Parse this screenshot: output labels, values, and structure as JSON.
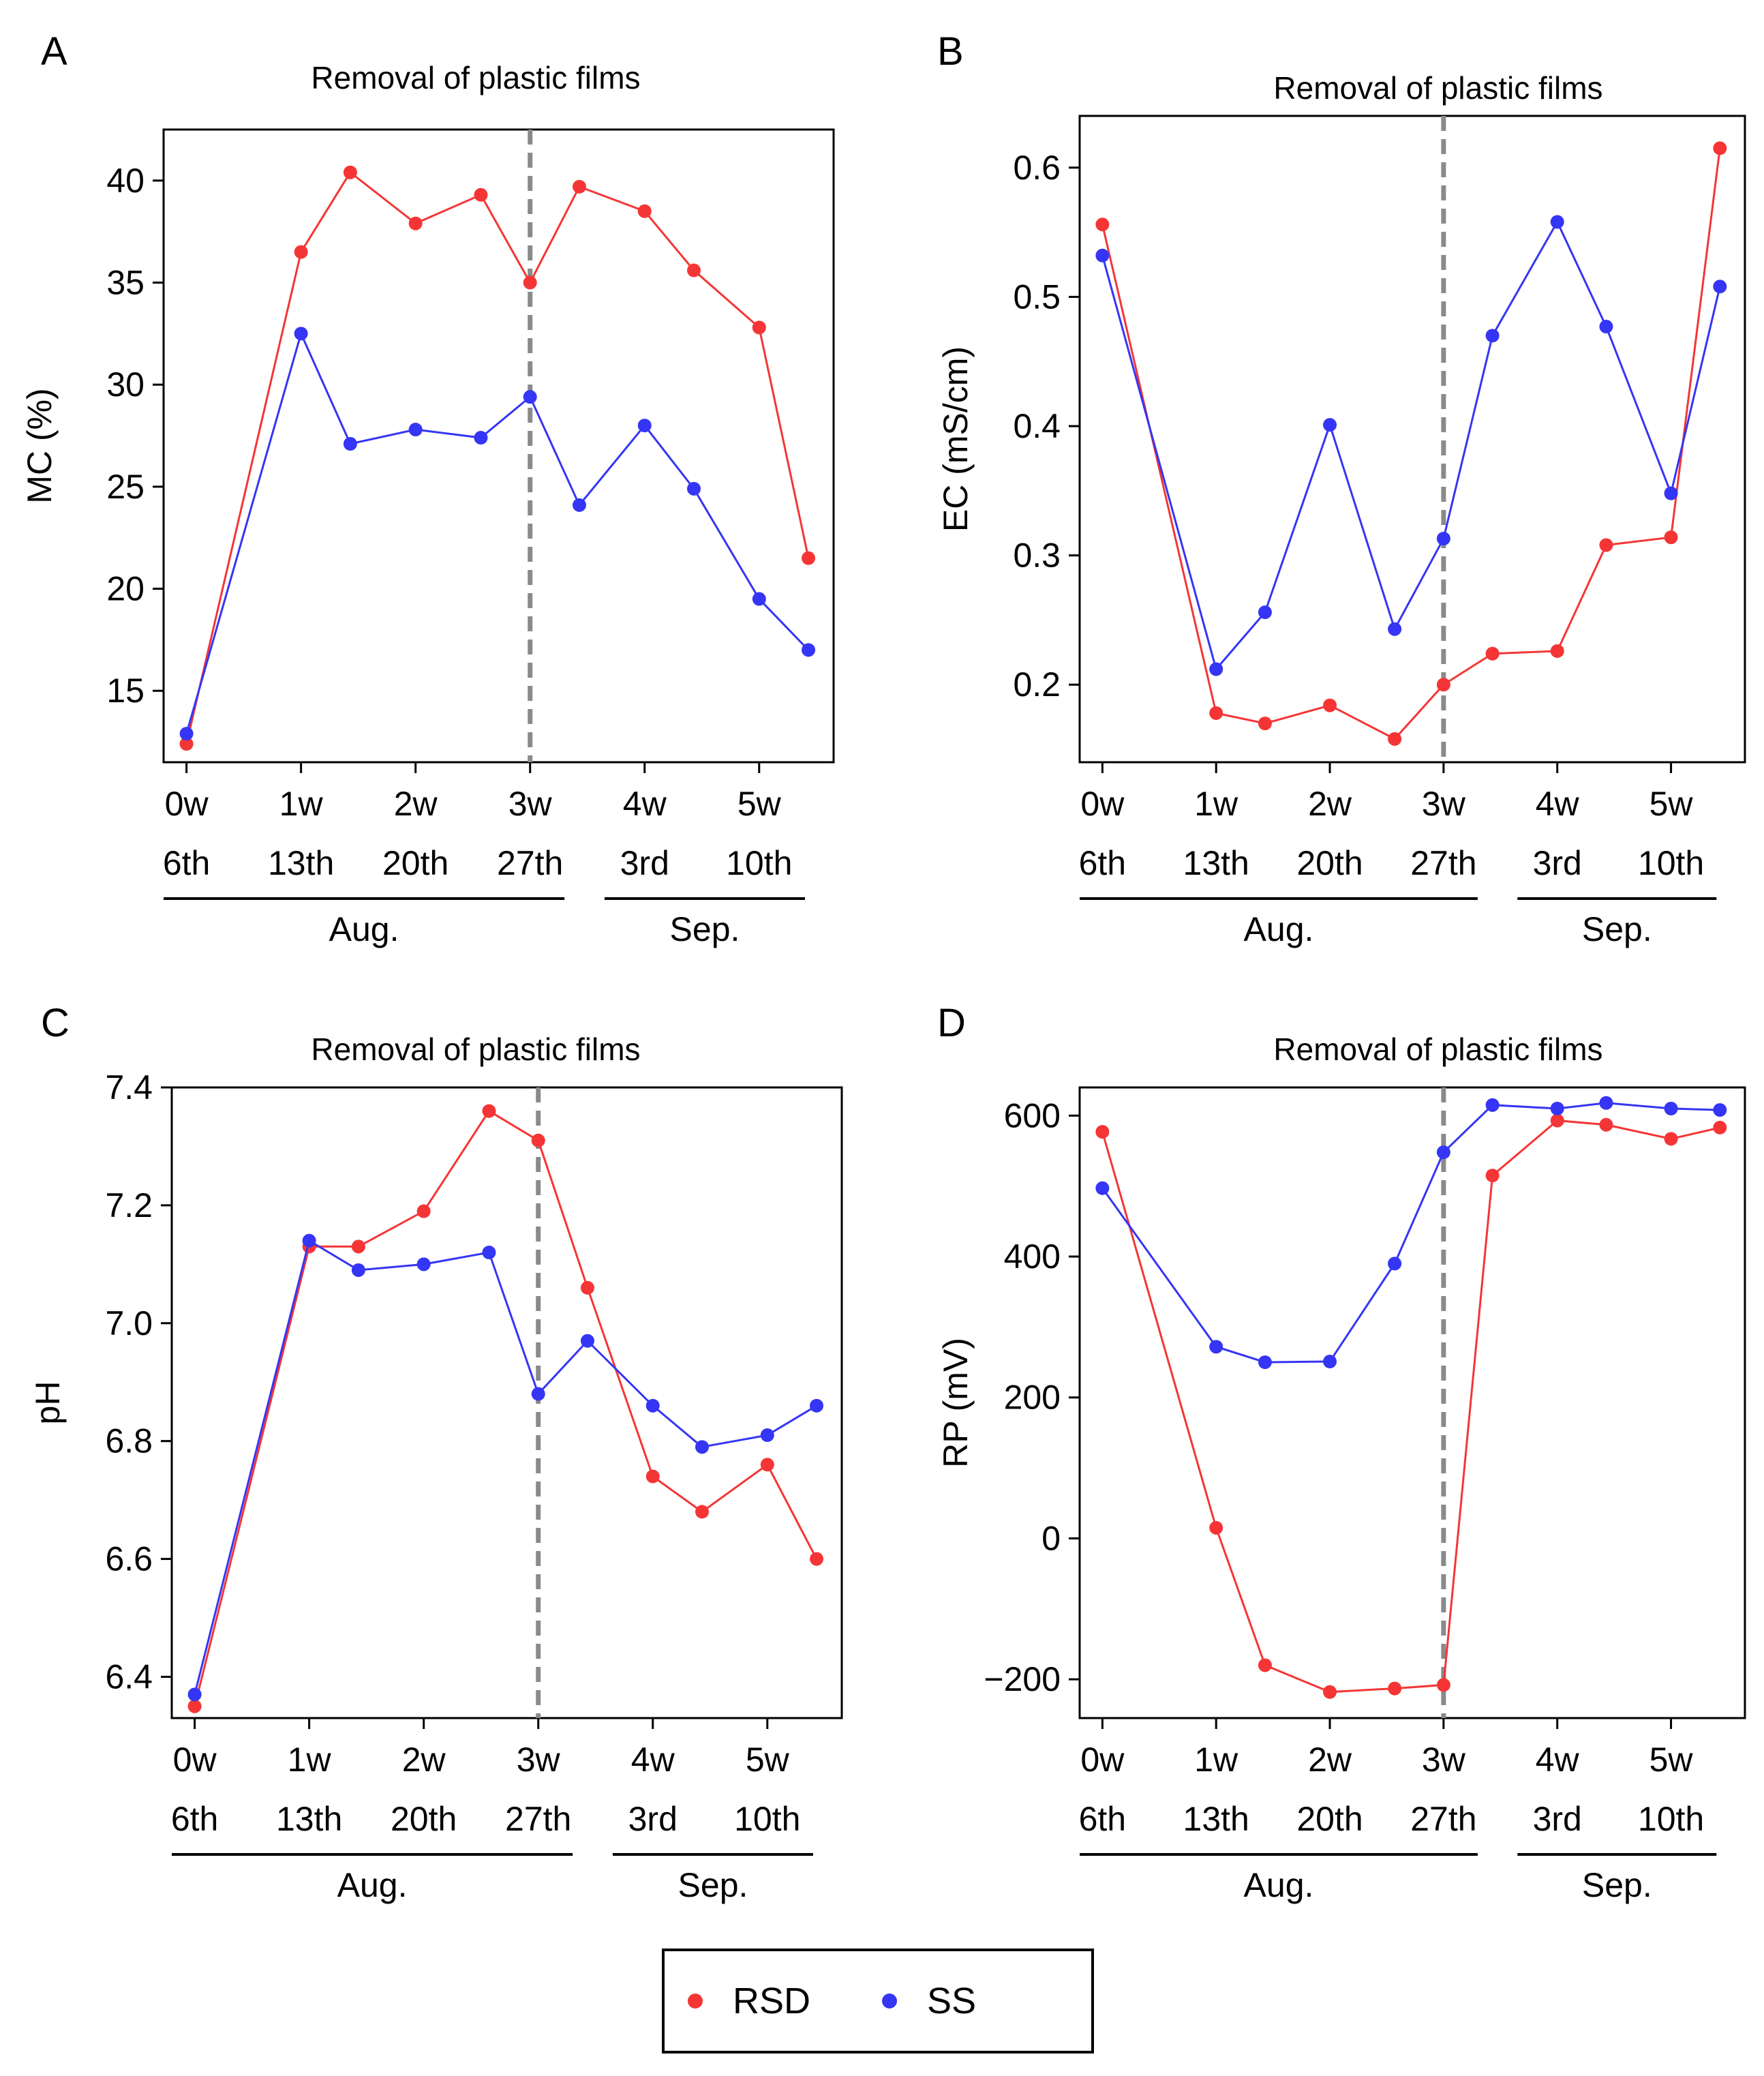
{
  "colors": {
    "RSD": "#f53535",
    "SS": "#3535f5",
    "vline": "#8a8a8a",
    "frame": "#000000"
  },
  "legend": {
    "items": [
      {
        "key": "RSD",
        "label": "RSD"
      },
      {
        "key": "SS",
        "label": "SS"
      }
    ]
  },
  "chart_data": [
    {
      "panel": "A",
      "type": "line",
      "annotation": "Removal of plastic films",
      "ylabel": "MC (%)",
      "xlim": [
        -0.2,
        5.65
      ],
      "ylim": [
        11.5,
        42.5
      ],
      "yticks": [
        15,
        20,
        25,
        30,
        35,
        40
      ],
      "ytick_labels": [
        "15",
        "20",
        "25",
        "30",
        "35",
        "40"
      ],
      "vline_x": 3,
      "week_ticks": [
        0,
        1,
        2,
        3,
        4,
        5
      ],
      "week_labels": [
        "0w",
        "1w",
        "2w",
        "3w",
        "4w",
        "5w"
      ],
      "date_labels": [
        "6th",
        "13th",
        "20th",
        "27th",
        "3rd",
        "10th"
      ],
      "months": [
        {
          "label": "Aug.",
          "range": [
            -0.2,
            3.3
          ]
        },
        {
          "label": "Sep.",
          "range": [
            3.65,
            5.4
          ]
        }
      ],
      "x": [
        0,
        1,
        1.43,
        2,
        2.57,
        3,
        3.43,
        4,
        4.43,
        5,
        5.43
      ],
      "series": [
        {
          "name": "RSD",
          "values": [
            12.4,
            36.5,
            40.4,
            37.9,
            39.3,
            35.0,
            39.7,
            38.5,
            35.6,
            32.8,
            21.5
          ]
        },
        {
          "name": "SS",
          "values": [
            12.9,
            32.5,
            27.1,
            27.8,
            27.4,
            29.4,
            24.1,
            28.0,
            24.9,
            19.5,
            17.0
          ]
        }
      ]
    },
    {
      "panel": "B",
      "type": "line",
      "annotation": "Removal of plastic films",
      "ylabel": "EC (mS/cm)",
      "xlim": [
        -0.2,
        5.65
      ],
      "ylim": [
        0.14,
        0.64
      ],
      "yticks": [
        0.2,
        0.3,
        0.4,
        0.5,
        0.6
      ],
      "ytick_labels": [
        "0.2",
        "0.3",
        "0.4",
        "0.5",
        "0.6"
      ],
      "vline_x": 3,
      "week_ticks": [
        0,
        1,
        2,
        3,
        4,
        5
      ],
      "week_labels": [
        "0w",
        "1w",
        "2w",
        "3w",
        "4w",
        "5w"
      ],
      "date_labels": [
        "6th",
        "13th",
        "20th",
        "27th",
        "3rd",
        "10th"
      ],
      "months": [
        {
          "label": "Aug.",
          "range": [
            -0.2,
            3.3
          ]
        },
        {
          "label": "Sep.",
          "range": [
            3.65,
            5.4
          ]
        }
      ],
      "x": [
        0,
        1,
        1.43,
        2,
        2.57,
        3,
        3.43,
        4,
        4.43,
        5,
        5.43
      ],
      "series": [
        {
          "name": "RSD",
          "values": [
            0.556,
            0.178,
            0.17,
            0.184,
            0.158,
            0.2,
            0.224,
            0.226,
            0.308,
            0.314,
            0.615
          ]
        },
        {
          "name": "SS",
          "values": [
            0.532,
            0.212,
            0.256,
            0.401,
            0.243,
            0.313,
            0.47,
            0.558,
            0.477,
            0.348,
            0.508
          ]
        }
      ]
    },
    {
      "panel": "C",
      "type": "line",
      "annotation": "Removal of plastic films",
      "ylabel": "pH",
      "xlim": [
        -0.2,
        5.65
      ],
      "ylim": [
        6.33,
        7.4
      ],
      "yticks": [
        6.4,
        6.6,
        6.8,
        7.0,
        7.2,
        7.4
      ],
      "ytick_labels": [
        "6.4",
        "6.6",
        "6.8",
        "7.0",
        "7.2",
        "7.4"
      ],
      "vline_x": 3,
      "week_ticks": [
        0,
        1,
        2,
        3,
        4,
        5
      ],
      "week_labels": [
        "0w",
        "1w",
        "2w",
        "3w",
        "4w",
        "5w"
      ],
      "date_labels": [
        "6th",
        "13th",
        "20th",
        "27th",
        "3rd",
        "10th"
      ],
      "months": [
        {
          "label": "Aug.",
          "range": [
            -0.2,
            3.3
          ]
        },
        {
          "label": "Sep.",
          "range": [
            3.65,
            5.4
          ]
        }
      ],
      "x": [
        0,
        1,
        1.43,
        2,
        2.57,
        3,
        3.43,
        4,
        4.43,
        5,
        5.43
      ],
      "series": [
        {
          "name": "RSD",
          "values": [
            6.35,
            7.13,
            7.13,
            7.19,
            7.36,
            7.31,
            7.06,
            6.74,
            6.68,
            6.76,
            6.6
          ]
        },
        {
          "name": "SS",
          "values": [
            6.37,
            7.14,
            7.09,
            7.1,
            7.12,
            6.88,
            6.97,
            6.86,
            6.79,
            6.81,
            6.86
          ]
        }
      ]
    },
    {
      "panel": "D",
      "type": "line",
      "annotation": "Removal of plastic films",
      "ylabel": "RP (mV)",
      "xlim": [
        -0.2,
        5.65
      ],
      "ylim": [
        -255,
        640
      ],
      "yticks": [
        -200,
        0,
        200,
        400,
        600
      ],
      "ytick_labels": [
        "−200",
        "0",
        "200",
        "400",
        "600"
      ],
      "vline_x": 3,
      "week_ticks": [
        0,
        1,
        2,
        3,
        4,
        5
      ],
      "week_labels": [
        "0w",
        "1w",
        "2w",
        "3w",
        "4w",
        "5w"
      ],
      "date_labels": [
        "6th",
        "13th",
        "20th",
        "27th",
        "3rd",
        "10th"
      ],
      "months": [
        {
          "label": "Aug.",
          "range": [
            -0.2,
            3.3
          ]
        },
        {
          "label": "Sep.",
          "range": [
            3.65,
            5.4
          ]
        }
      ],
      "x": [
        0,
        1,
        1.43,
        2,
        2.57,
        3,
        3.43,
        4,
        4.43,
        5,
        5.43
      ],
      "series": [
        {
          "name": "RSD",
          "values": [
            577,
            15,
            -180,
            -218,
            -213,
            -208,
            515,
            593,
            587,
            567,
            583
          ]
        },
        {
          "name": "SS",
          "values": [
            497,
            272,
            250,
            251,
            390,
            548,
            615,
            610,
            618,
            610,
            608
          ]
        }
      ]
    }
  ]
}
